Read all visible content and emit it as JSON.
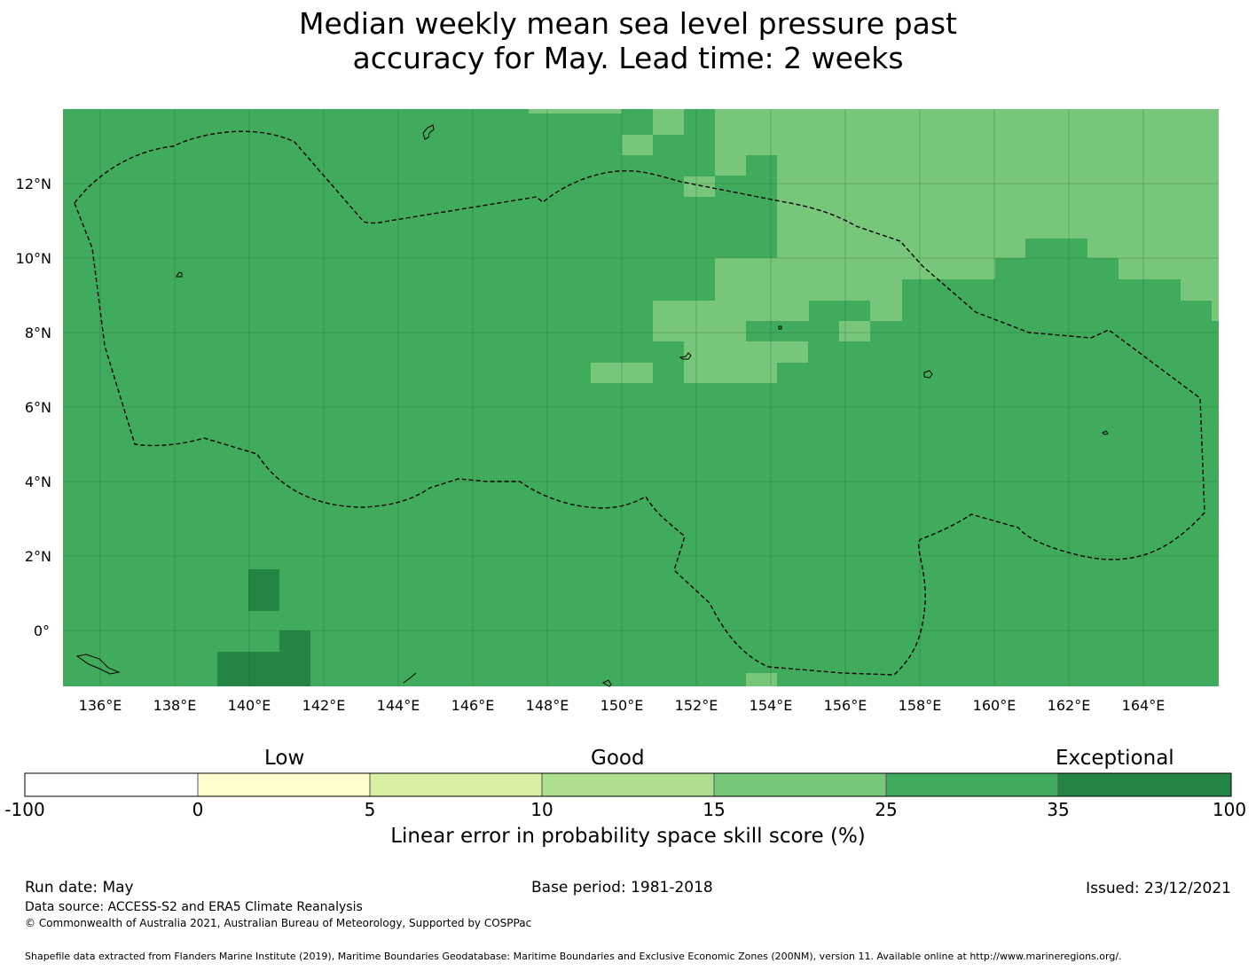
{
  "title_line1": "Median weekly mean sea level pressure past",
  "title_line2": "accuracy for May. Lead time: 2 weeks",
  "map": {
    "lon_labels": [
      "136°E",
      "138°E",
      "140°E",
      "142°E",
      "144°E",
      "146°E",
      "148°E",
      "150°E",
      "152°E",
      "154°E",
      "156°E",
      "158°E",
      "160°E",
      "162°E",
      "164°E"
    ],
    "lat_labels": [
      "12°N",
      "10°N",
      "8°N",
      "6°N",
      "4°N",
      "2°N",
      "0°"
    ],
    "base_color": "#41ab5d"
  },
  "legend": {
    "category_labels": {
      "low": "Low",
      "good": "Good",
      "exceptional": "Exceptional"
    },
    "ticks": [
      "-100",
      "0",
      "5",
      "10",
      "15",
      "25",
      "35",
      "100"
    ],
    "colors": [
      "#ffffff",
      "#ffffcc",
      "#d9f0a3",
      "#addd8e",
      "#78c679",
      "#41ab5d",
      "#238443"
    ],
    "label": "Linear error in probability space skill score (%)"
  },
  "footer": {
    "run_date": "Run date: May",
    "base_period": "Base period: 1981-2018",
    "issued": "Issued: 23/12/2021",
    "data_source": "Data source: ACCESS-S2 and ERA5 Climate Reanalysis",
    "copyright": "© Commonwealth of Australia 2021, Australian Bureau of Meteorology, Supported by COSPPac",
    "shapefile": "Shapefile data extracted from Flanders Marine Institute (2019), Maritime Boundaries Geodatabase: Maritime Boundaries and Exclusive Economic Zones (200NM), version 11. Available online at http://www.marineregions.org/."
  }
}
